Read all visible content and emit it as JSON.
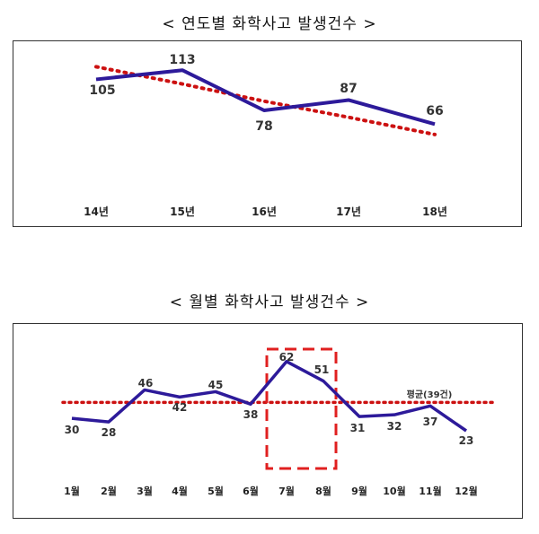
{
  "chart_data": [
    {
      "type": "line",
      "title": "< 연도별 화학사고 발생건수 >",
      "categories": [
        "14년",
        "15년",
        "16년",
        "17년",
        "18년"
      ],
      "series": [
        {
          "values": [
            105,
            113,
            78,
            87,
            66
          ],
          "color": "#2d1a9a",
          "style": "solid"
        },
        {
          "values": [
            116,
            101,
            86,
            72,
            57
          ],
          "color": "#cc1111",
          "style": "dotted"
        }
      ],
      "data_labels": [
        "105",
        "113",
        "78",
        "87",
        "66"
      ]
    },
    {
      "type": "line",
      "title": "< 월별 화학사고 발생건수 >",
      "categories": [
        "1월",
        "2월",
        "3월",
        "4월",
        "5월",
        "6월",
        "7월",
        "8월",
        "9월",
        "10월",
        "11월",
        "12월"
      ],
      "series": [
        {
          "values": [
            30,
            28,
            46,
            42,
            45,
            38,
            62,
            51,
            31,
            32,
            37,
            23
          ],
          "color": "#2d1a9a",
          "style": "solid"
        }
      ],
      "data_labels": [
        "30",
        "28",
        "46",
        "42",
        "45",
        "38",
        "62",
        "51",
        "31",
        "32",
        "37",
        "23"
      ],
      "average": {
        "value": 39,
        "label": "평균(39건)",
        "color": "#cc1111"
      },
      "highlight": {
        "categories": [
          "7월",
          "8월"
        ],
        "color": "#e02020"
      }
    }
  ]
}
